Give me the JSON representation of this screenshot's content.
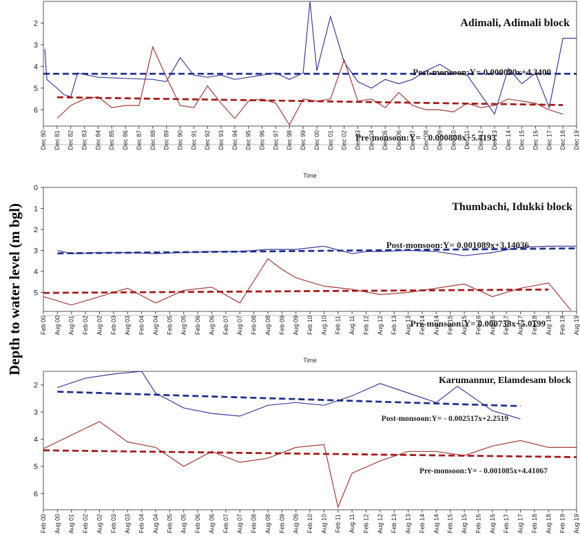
{
  "figure": {
    "shared_ylabel": "Depth to water level (m bgl)",
    "colors": {
      "post": "#3b3b9a",
      "pre": "#a33a33",
      "post_trend": "#1f2f8f",
      "pre_trend": "#a51a1a"
    }
  },
  "chart_data": [
    {
      "type": "line",
      "title": "Adimali, Adimali block",
      "xlabel": "Time",
      "ylabel": "",
      "yticks": [
        2,
        3,
        4,
        5,
        6
      ],
      "ylim_top": 1.0,
      "ylim_bottom": 6.75,
      "categories": [
        "Dec 80",
        "Dec 81",
        "Dec 82",
        "Dec 83",
        "Dec 84",
        "Dec 85",
        "Dec 86",
        "Dec 87",
        "Dec 88",
        "Dec 89",
        "Dec 90",
        "Dec 91",
        "Dec 92",
        "Dec 93",
        "Dec 94",
        "Dec 95",
        "Dec 96",
        "Dec 97",
        "Dec 98",
        "Dec 99",
        "Dec 00",
        "Dec 01",
        "Dec 02",
        "Dec 03",
        "Dec 04",
        "Dec 05",
        "Dec 06",
        "Dec 07",
        "Dec 08",
        "Dec 09",
        "Dec 10",
        "Dec 11",
        "Dec 12",
        "Dec 13",
        "Dec 14",
        "Dec 15",
        "Dec 16",
        "Dec 17",
        "Dec 18",
        "Dec 19"
      ],
      "x_range": [
        0,
        39
      ],
      "series": [
        {
          "name": "Post-monsoon",
          "x": [
            0.1,
            0.25,
            1,
            1.5,
            2,
            2.5,
            4,
            8,
            9,
            10,
            11,
            12,
            13,
            14,
            15,
            16,
            17,
            18,
            19,
            19.5,
            20,
            21,
            22,
            23,
            24,
            25,
            26,
            27,
            28,
            29,
            30,
            31,
            32,
            33,
            34,
            35,
            36,
            37,
            38,
            39
          ],
          "values": [
            3.2,
            4.6,
            5.0,
            5.3,
            5.4,
            4.3,
            4.5,
            4.6,
            4.7,
            3.6,
            4.4,
            4.5,
            4.4,
            4.6,
            4.5,
            4.4,
            4.3,
            4.6,
            4.3,
            1.0,
            4.2,
            1.7,
            3.8,
            4.7,
            5.0,
            4.6,
            4.8,
            4.6,
            4.2,
            3.9,
            4.3,
            4.4,
            5.3,
            6.2,
            4.1,
            4.8,
            4.3,
            5.9,
            2.7,
            2.7
          ]
        },
        {
          "name": "Pre-monsoon",
          "x": [
            1,
            2,
            3,
            4,
            5,
            6,
            7,
            8,
            9,
            10,
            11,
            12,
            13,
            14,
            15,
            16,
            17,
            18,
            19,
            20,
            21,
            22,
            23,
            24,
            25,
            26,
            27,
            28,
            29,
            30,
            31,
            32,
            33,
            34,
            35,
            36,
            37,
            38
          ],
          "values": [
            6.4,
            5.8,
            5.5,
            5.4,
            5.9,
            5.8,
            5.8,
            3.1,
            4.5,
            5.8,
            5.9,
            4.9,
            5.7,
            6.4,
            5.6,
            5.5,
            5.7,
            6.7,
            5.5,
            5.6,
            5.5,
            3.7,
            5.6,
            5.5,
            5.9,
            5.2,
            5.8,
            6.0,
            6.0,
            6.1,
            5.7,
            5.9,
            5.8,
            5.5,
            5.6,
            5.7,
            6.0,
            6.2
          ]
        }
      ],
      "trends": [
        {
          "name": "Post-monsoon",
          "label": "Post-monsoon:Y= 0.000090x+4.3400",
          "x": [
            0,
            39
          ],
          "values": [
            4.34,
            4.34
          ]
        },
        {
          "name": "Pre-monsoon",
          "label": "Pre-monsoon:Y= - 0.000808x+5.4193",
          "x": [
            1,
            38
          ],
          "values": [
            5.42,
            5.78
          ]
        }
      ]
    },
    {
      "type": "line",
      "title": "Thumbachi, Idukki block",
      "xlabel": "Time",
      "ylabel": "",
      "yticks": [
        0,
        1,
        2,
        3,
        4,
        5
      ],
      "ylim_top": 0,
      "ylim_bottom": 5.9,
      "categories": [
        "Feb 00",
        "Aug 00",
        "Aug 01",
        "Feb 02",
        "Aug 02",
        "Feb 03",
        "Aug 03",
        "Feb 04",
        "Aug 04",
        "Feb 05",
        "Aug 05",
        "Feb 06",
        "Aug 06",
        "Feb 07",
        "Aug 07",
        "Feb 08",
        "Aug 08",
        "Feb 09",
        "Aug 09",
        "Feb 10",
        "Aug 10",
        "Feb 11",
        "Aug 11",
        "Feb 12",
        "Aug 12",
        "Feb 13",
        "Aug 13",
        "Feb 14",
        "Aug 14",
        "Feb 15",
        "Aug 15",
        "Feb 16",
        "Aug 16",
        "Feb 17",
        "Aug 17",
        "Feb 18",
        "Aug 18",
        "Feb 19",
        "Aug 19"
      ],
      "x_range": [
        0,
        38
      ],
      "series": [
        {
          "name": "Post-monsoon",
          "x": [
            1,
            2,
            4,
            6,
            8,
            10,
            12,
            14,
            16,
            17,
            18,
            20,
            22,
            23,
            24,
            26,
            28,
            30,
            32,
            34,
            36,
            38
          ],
          "values": [
            3.0,
            3.15,
            3.1,
            3.1,
            3.15,
            3.1,
            3.05,
            3.05,
            2.95,
            2.95,
            2.95,
            2.8,
            3.15,
            3.05,
            3.05,
            3.0,
            3.05,
            3.25,
            3.1,
            2.85,
            2.8,
            2.8
          ]
        },
        {
          "name": "Pre-monsoon",
          "x": [
            0,
            2,
            4,
            6,
            8,
            10,
            12,
            14,
            16,
            17,
            18,
            20,
            22,
            24,
            26,
            28,
            30,
            32,
            34,
            36,
            37.6
          ],
          "values": [
            5.2,
            5.6,
            5.2,
            4.8,
            5.5,
            4.9,
            4.75,
            5.5,
            3.4,
            3.9,
            4.3,
            4.7,
            4.85,
            5.1,
            5.0,
            4.8,
            4.6,
            5.2,
            4.8,
            4.55,
            5.85
          ]
        }
      ],
      "trends": [
        {
          "name": "Post-monsoon",
          "label": "Post-monsoon:Y= 0.001089x+3.14036",
          "x": [
            1,
            38
          ],
          "values": [
            3.14,
            2.9
          ]
        },
        {
          "name": "Pre-monsoon",
          "label": "Pre-monsoon:Y= 0.000738x+5.0199",
          "x": [
            0,
            36
          ],
          "values": [
            5.02,
            4.86
          ]
        }
      ]
    },
    {
      "type": "line",
      "title": "Karumannur, Elamdesam block",
      "xlabel": "",
      "ylabel": "",
      "yticks": [
        2,
        3,
        4,
        5,
        6
      ],
      "ylim_top": 1.5,
      "ylim_bottom": 6.6,
      "categories": [
        "Feb 00",
        "Aug 00",
        "Aug 01",
        "Feb 02",
        "Aug 02",
        "Feb 03",
        "Aug 03",
        "Feb 04",
        "Aug 04",
        "Feb 05",
        "Aug 05",
        "Feb 06",
        "Aug 06",
        "Feb 07",
        "Aug 07",
        "Feb 08",
        "Aug 08",
        "Feb 09",
        "Aug 09",
        "Feb 10",
        "Aug 10",
        "Feb 11",
        "Aug 11",
        "Feb 12",
        "Aug 12",
        "Feb 13",
        "Aug 13",
        "Feb 14",
        "Aug 14",
        "Feb 15",
        "Aug 15",
        "Feb 16",
        "Aug 16",
        "Feb 17",
        "Aug 17",
        "Feb 18",
        "Aug 18",
        "Feb 19",
        "Aug 19"
      ],
      "x_range": [
        0,
        38
      ],
      "series": [
        {
          "name": "Post-monsoon",
          "x": [
            1,
            3,
            5,
            7,
            8,
            10,
            12,
            14,
            16,
            18,
            20,
            22,
            24,
            26,
            28,
            29.5,
            32,
            34
          ],
          "values": [
            2.1,
            1.75,
            1.6,
            1.5,
            2.3,
            2.85,
            3.05,
            3.15,
            2.75,
            2.65,
            2.75,
            2.4,
            1.95,
            2.3,
            2.65,
            2.05,
            2.95,
            3.25
          ]
        },
        {
          "name": "Pre-monsoon",
          "x": [
            0,
            2,
            4,
            6,
            8,
            10,
            12,
            14,
            16,
            18,
            20,
            21,
            22,
            24,
            26,
            28,
            30,
            32,
            34,
            36,
            38
          ],
          "values": [
            4.35,
            3.85,
            3.35,
            4.1,
            4.3,
            5.0,
            4.45,
            4.85,
            4.7,
            4.3,
            4.2,
            6.5,
            5.25,
            4.8,
            4.45,
            4.45,
            4.6,
            4.25,
            4.05,
            4.3,
            4.3
          ]
        }
      ],
      "trends": [
        {
          "name": "Post-monsoon",
          "label": "Post-monsoon:Y= - 0.002517x+2.2519",
          "x": [
            1,
            34
          ],
          "values": [
            2.25,
            2.78
          ]
        },
        {
          "name": "Pre-monsoon",
          "label": "Pre-monsoon:Y= - 0.001085x+4.41067",
          "x": [
            0,
            38
          ],
          "values": [
            4.41,
            4.66
          ]
        }
      ]
    }
  ]
}
